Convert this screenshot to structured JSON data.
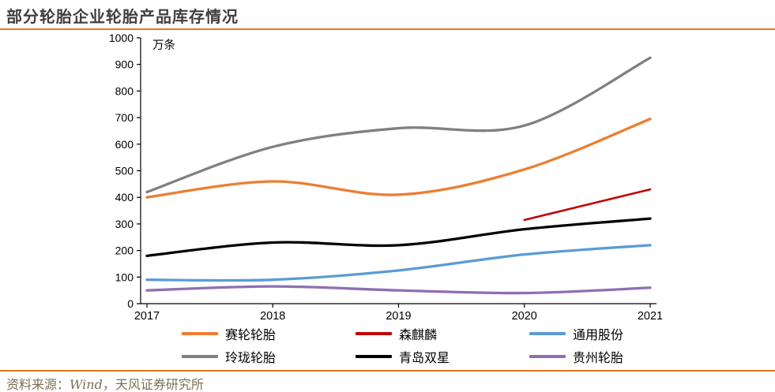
{
  "page": {
    "title": "部分轮胎企业轮胎产品库存情况",
    "accent_color": "#E87722",
    "source": {
      "prefix": "资料来源：",
      "wind": "Wind",
      "suffix": "，天风证券研究所"
    }
  },
  "chart_data": {
    "type": "line",
    "title": "部分轮胎企业轮胎产品库存情况",
    "unit_label": "万条",
    "categories": [
      "2017",
      "2018",
      "2019",
      "2020",
      "2021"
    ],
    "y_ticks": [
      0,
      100,
      200,
      300,
      400,
      500,
      600,
      700,
      800,
      900,
      1000
    ],
    "ylim": [
      0,
      1000
    ],
    "grid": false,
    "line_style": "smooth",
    "legend_position": "bottom",
    "legend_rows": 2,
    "series": [
      {
        "name": "赛轮轮胎",
        "color": "#ED7D31",
        "values": [
          400,
          460,
          410,
          505,
          695
        ]
      },
      {
        "name": "森麒麟",
        "color": "#C00000",
        "values": [
          null,
          null,
          null,
          315,
          430
        ]
      },
      {
        "name": "通用股份",
        "color": "#5B9BD5",
        "values": [
          90,
          90,
          125,
          185,
          220
        ]
      },
      {
        "name": "玲珑轮胎",
        "color": "#808080",
        "values": [
          420,
          590,
          660,
          670,
          925
        ]
      },
      {
        "name": "青岛双星",
        "color": "#000000",
        "values": [
          180,
          230,
          220,
          280,
          320
        ]
      },
      {
        "name": "贵州轮胎",
        "color": "#8E6FB2",
        "values": [
          50,
          65,
          50,
          40,
          60
        ]
      }
    ]
  }
}
